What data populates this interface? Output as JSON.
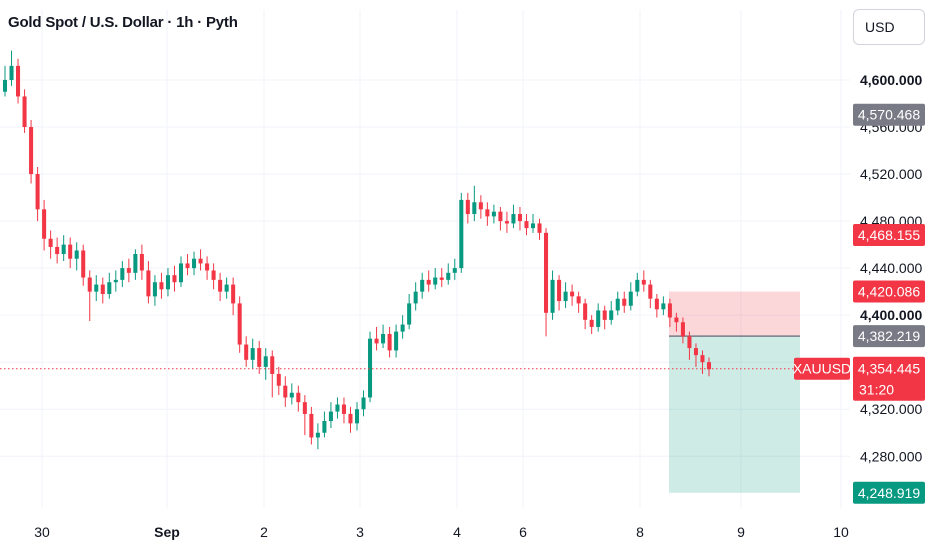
{
  "header": {
    "title": "Gold Spot / U.S. Dollar · 1h · Pyth"
  },
  "scale": {
    "currency_label": "USD"
  },
  "colors": {
    "up": "#089981",
    "down": "#f23645",
    "grid": "#f0f3fa",
    "gray_tag": "#787b86",
    "last_tag": "#f23645",
    "symbol_tag": "#f23645"
  },
  "chart_data": {
    "type": "candlestick",
    "symbol": "XAUUSD",
    "ylim": [
      4236,
      4634
    ],
    "y_ticks": [
      {
        "label": "4,280.000",
        "value": 4280,
        "bold": false
      },
      {
        "label": "4,320.000",
        "value": 4320,
        "bold": false
      },
      {
        "label": "4,360.000",
        "value": 4360,
        "bold": false
      },
      {
        "label": "4,400.000",
        "value": 4400,
        "bold": true
      },
      {
        "label": "4,440.000",
        "value": 4440,
        "bold": false
      },
      {
        "label": "4,480.000",
        "value": 4480,
        "bold": false
      },
      {
        "label": "4,520.000",
        "value": 4520,
        "bold": false
      },
      {
        "label": "4,560.000",
        "value": 4560,
        "bold": false
      },
      {
        "label": "4,600.000",
        "value": 4600,
        "bold": true
      }
    ],
    "x_ticks": [
      {
        "label": "30",
        "bold": false
      },
      {
        "label": "Sep",
        "bold": true
      },
      {
        "label": "2",
        "bold": false
      },
      {
        "label": "3",
        "bold": false
      },
      {
        "label": "4",
        "bold": false
      },
      {
        "label": "6",
        "bold": false
      },
      {
        "label": "8",
        "bold": false
      },
      {
        "label": "9",
        "bold": false
      },
      {
        "label": "10",
        "bold": false
      }
    ],
    "candles": [
      [
        4590,
        4600,
        4612,
        4586
      ],
      [
        4600,
        4612,
        4625,
        4595
      ],
      [
        4612,
        4586,
        4618,
        4580
      ],
      [
        4586,
        4560,
        4592,
        4555
      ],
      [
        4560,
        4520,
        4566,
        4512
      ],
      [
        4520,
        4490,
        4526,
        4480
      ],
      [
        4490,
        4465,
        4498,
        4455
      ],
      [
        4465,
        4458,
        4472,
        4448
      ],
      [
        4458,
        4452,
        4466,
        4444
      ],
      [
        4452,
        4460,
        4468,
        4446
      ],
      [
        4460,
        4448,
        4466,
        4440
      ],
      [
        4448,
        4455,
        4462,
        4438
      ],
      [
        4455,
        4432,
        4460,
        4425
      ],
      [
        4432,
        4420,
        4438,
        4395
      ],
      [
        4420,
        4426,
        4434,
        4412
      ],
      [
        4426,
        4418,
        4432,
        4410
      ],
      [
        4418,
        4428,
        4436,
        4414
      ],
      [
        4428,
        4430,
        4438,
        4420
      ],
      [
        4430,
        4440,
        4446,
        4424
      ],
      [
        4440,
        4436,
        4448,
        4428
      ],
      [
        4436,
        4452,
        4456,
        4430
      ],
      [
        4452,
        4438,
        4460,
        4430
      ],
      [
        4438,
        4416,
        4446,
        4410
      ],
      [
        4416,
        4428,
        4434,
        4408
      ],
      [
        4428,
        4422,
        4436,
        4414
      ],
      [
        4422,
        4434,
        4440,
        4416
      ],
      [
        4434,
        4428,
        4442,
        4420
      ],
      [
        4428,
        4444,
        4450,
        4424
      ],
      [
        4444,
        4440,
        4452,
        4434
      ],
      [
        4440,
        4448,
        4454,
        4434
      ],
      [
        4448,
        4444,
        4456,
        4438
      ],
      [
        4444,
        4438,
        4450,
        4430
      ],
      [
        4438,
        4430,
        4444,
        4422
      ],
      [
        4430,
        4420,
        4436,
        4412
      ],
      [
        4420,
        4426,
        4432,
        4414
      ],
      [
        4426,
        4410,
        4432,
        4400
      ],
      [
        4410,
        4375,
        4416,
        4368
      ],
      [
        4375,
        4362,
        4382,
        4356
      ],
      [
        4362,
        4372,
        4380,
        4354
      ],
      [
        4372,
        4356,
        4378,
        4350
      ],
      [
        4356,
        4365,
        4372,
        4345
      ],
      [
        4365,
        4350,
        4370,
        4330
      ],
      [
        4350,
        4340,
        4356,
        4332
      ],
      [
        4340,
        4330,
        4348,
        4322
      ],
      [
        4330,
        4334,
        4342,
        4324
      ],
      [
        4334,
        4326,
        4340,
        4318
      ],
      [
        4326,
        4316,
        4332,
        4298
      ],
      [
        4316,
        4296,
        4322,
        4290
      ],
      [
        4296,
        4300,
        4308,
        4286
      ],
      [
        4300,
        4310,
        4318,
        4296
      ],
      [
        4310,
        4318,
        4326,
        4304
      ],
      [
        4318,
        4324,
        4330,
        4312
      ],
      [
        4324,
        4316,
        4330,
        4308
      ],
      [
        4316,
        4308,
        4322,
        4300
      ],
      [
        4308,
        4320,
        4326,
        4302
      ],
      [
        4320,
        4330,
        4336,
        4314
      ],
      [
        4330,
        4380,
        4386,
        4326
      ],
      [
        4380,
        4376,
        4390,
        4370
      ],
      [
        4376,
        4384,
        4392,
        4372
      ],
      [
        4384,
        4370,
        4390,
        4364
      ],
      [
        4370,
        4386,
        4392,
        4364
      ],
      [
        4386,
        4392,
        4400,
        4380
      ],
      [
        4392,
        4410,
        4418,
        4388
      ],
      [
        4410,
        4420,
        4428,
        4404
      ],
      [
        4420,
        4430,
        4436,
        4414
      ],
      [
        4430,
        4426,
        4438,
        4420
      ],
      [
        4426,
        4432,
        4440,
        4422
      ],
      [
        4432,
        4430,
        4440,
        4424
      ],
      [
        4430,
        4436,
        4444,
        4426
      ],
      [
        4436,
        4440,
        4448,
        4430
      ],
      [
        4440,
        4498,
        4504,
        4436
      ],
      [
        4498,
        4486,
        4504,
        4478
      ],
      [
        4486,
        4496,
        4510,
        4480
      ],
      [
        4496,
        4490,
        4502,
        4482
      ],
      [
        4490,
        4484,
        4496,
        4476
      ],
      [
        4484,
        4488,
        4494,
        4478
      ],
      [
        4488,
        4480,
        4492,
        4472
      ],
      [
        4480,
        4478,
        4488,
        4470
      ],
      [
        4478,
        4486,
        4494,
        4474
      ],
      [
        4486,
        4480,
        4492,
        4472
      ],
      [
        4480,
        4474,
        4486,
        4468
      ],
      [
        4474,
        4478,
        4486,
        4470
      ],
      [
        4478,
        4470,
        4482,
        4464
      ],
      [
        4470,
        4402,
        4474,
        4382
      ],
      [
        4402,
        4430,
        4438,
        4396
      ],
      [
        4430,
        4412,
        4434,
        4404
      ],
      [
        4412,
        4420,
        4428,
        4406
      ],
      [
        4420,
        4416,
        4426,
        4408
      ],
      [
        4416,
        4410,
        4420,
        4402
      ],
      [
        4410,
        4396,
        4414,
        4388
      ],
      [
        4396,
        4390,
        4400,
        4384
      ],
      [
        4390,
        4404,
        4410,
        4386
      ],
      [
        4404,
        4396,
        4408,
        4388
      ],
      [
        4396,
        4404,
        4412,
        4392
      ],
      [
        4404,
        4414,
        4420,
        4400
      ],
      [
        4414,
        4408,
        4420,
        4402
      ],
      [
        4408,
        4420,
        4428,
        4404
      ],
      [
        4420,
        4430,
        4436,
        4416
      ],
      [
        4430,
        4426,
        4438,
        4420
      ],
      [
        4426,
        4414,
        4430,
        4406
      ],
      [
        4414,
        4405,
        4418,
        4398
      ],
      [
        4405,
        4410,
        4416,
        4400
      ],
      [
        4410,
        4398,
        4414,
        4390
      ],
      [
        4398,
        4394,
        4402,
        4386
      ],
      [
        4394,
        4382,
        4398,
        4376
      ],
      [
        4382,
        4372,
        4386,
        4362
      ],
      [
        4372,
        4366,
        4376,
        4356
      ],
      [
        4366,
        4360,
        4370,
        4350
      ],
      [
        4360,
        4354,
        4364,
        4348
      ]
    ],
    "position": {
      "stop": 4420.086,
      "entry": 4382.219,
      "target": 4248.919
    },
    "price_tags": [
      {
        "label": "4,570.468",
        "value": 4570.468,
        "style": "gray"
      },
      {
        "label": "4,468.155",
        "value": 4468.155,
        "style": "red"
      },
      {
        "label": "4,420.086",
        "value": 4420.086,
        "style": "red"
      },
      {
        "label": "4,382.219",
        "value": 4382.219,
        "style": "gray"
      },
      {
        "label": "4,248.919",
        "value": 4248.919,
        "style": "green"
      }
    ],
    "last_price": {
      "label": "4,354.445",
      "value": 4354.445,
      "countdown": "31:20"
    }
  }
}
